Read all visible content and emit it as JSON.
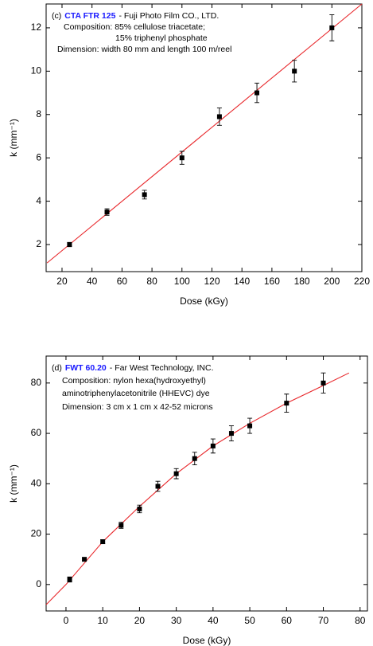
{
  "chart_data": [
    {
      "type": "scatter",
      "annotation": {
        "prefix": "(c)",
        "name": "CTA FTR 125",
        "org": "- Fuji Photo Film CO., LTD.",
        "lines": [
          "Composition: 85% cellulose triacetate;",
          "15% triphenyl phosphate",
          "Dimension: width 80 mm and length 100 m/reel"
        ]
      },
      "name_color": "#1a1aff",
      "x_label": "Dose (kGy)",
      "y_label": "k (mm⁻¹)",
      "x": [
        25,
        50,
        75,
        100,
        125,
        150,
        175,
        200
      ],
      "values": [
        2.0,
        3.5,
        4.3,
        6.0,
        7.9,
        9.0,
        10.0,
        12.0
      ],
      "errors": [
        0.1,
        0.15,
        0.2,
        0.3,
        0.4,
        0.45,
        0.5,
        0.6
      ],
      "color": "#000000",
      "fit": {
        "x": [
          10,
          220
        ],
        "y": [
          1.15,
          13.1
        ],
        "color": "#e8262a"
      },
      "xlim": [
        9.4,
        220
      ],
      "ylim": [
        0.75,
        13.1
      ],
      "xticks": [
        20,
        40,
        60,
        80,
        100,
        120,
        140,
        160,
        180,
        200,
        220
      ],
      "yticks": [
        2,
        4,
        6,
        8,
        10,
        12
      ]
    },
    {
      "type": "scatter",
      "annotation": {
        "prefix": "(d)",
        "name": "FWT 60.20",
        "org": "- Far West Technology, INC.",
        "lines": [
          "Composition: nylon hexa(hydroxyethyl)",
          "aminotriphenylacetonitrile  (HHEVC) dye",
          "Dimension: 3 cm x 1 cm x 42-52 microns"
        ]
      },
      "name_color": "#1a1aff",
      "x_label": "Dose (kGy)",
      "y_label": "k (mm⁻¹)",
      "x": [
        1,
        5,
        10,
        15,
        20,
        25,
        30,
        35,
        40,
        45,
        50,
        60,
        70
      ],
      "values": [
        2,
        10,
        17,
        23.5,
        30,
        39,
        44,
        50,
        55,
        60,
        63,
        72,
        80
      ],
      "errors": [
        1,
        0.5,
        0.8,
        1.2,
        1.5,
        2,
        2,
        2.5,
        2.8,
        3,
        3,
        3.6,
        4
      ],
      "color": "#000000",
      "fit": {
        "x": [
          -5.4,
          0,
          10,
          20,
          30,
          40,
          50,
          60,
          70,
          77
        ],
        "y": [
          -8,
          0,
          17,
          31,
          44,
          55,
          64,
          72,
          79,
          84
        ],
        "color": "#e8262a"
      },
      "xlim": [
        -5.4,
        82
      ],
      "ylim": [
        -10.5,
        90.7
      ],
      "xticks": [
        0,
        10,
        20,
        30,
        40,
        50,
        60,
        70,
        80
      ],
      "yticks": [
        0,
        20,
        40,
        60,
        80
      ]
    }
  ]
}
